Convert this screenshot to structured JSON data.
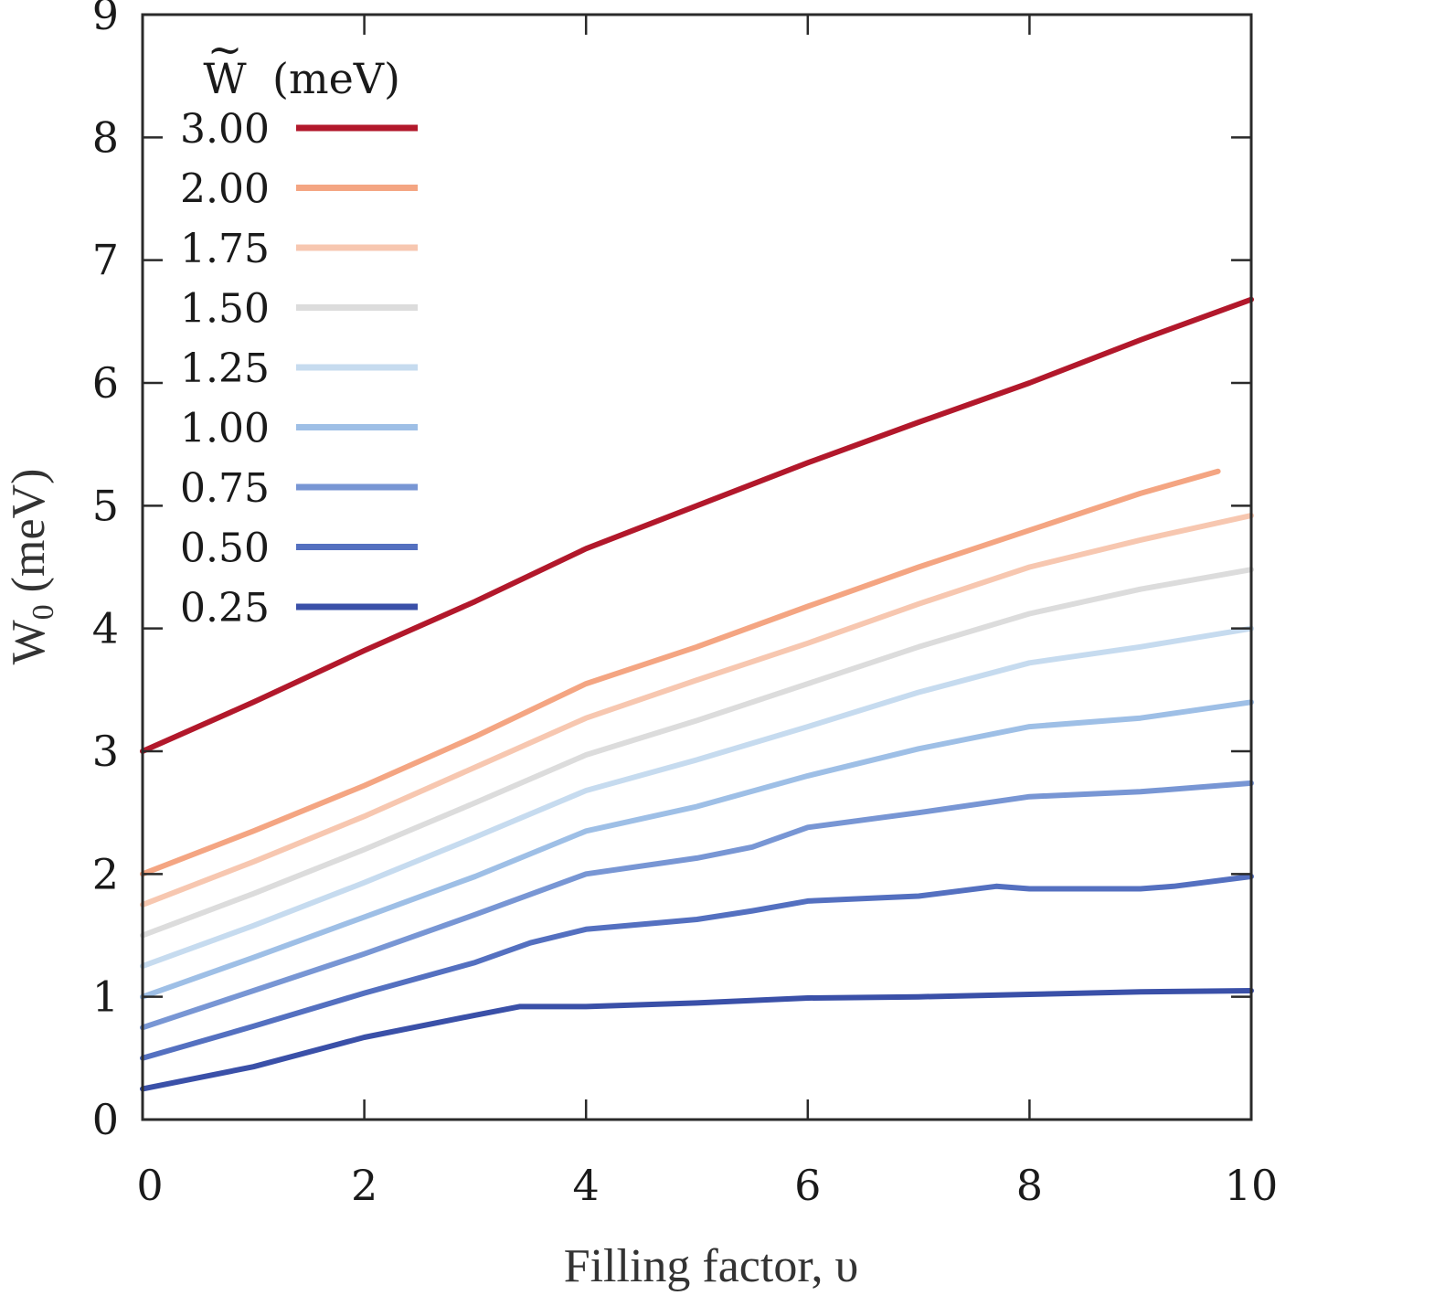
{
  "chart_data": {
    "type": "line",
    "title": "",
    "xlabel": "Filling factor, υ",
    "ylabel_main": "W",
    "ylabel_sub": "0",
    "ylabel_unit": " (meV)",
    "xlim": [
      0,
      10
    ],
    "ylim": [
      0,
      9
    ],
    "xticks": [
      0,
      2,
      4,
      6,
      8,
      10
    ],
    "yticks": [
      0,
      1,
      2,
      3,
      4,
      5,
      6,
      7,
      8,
      9
    ],
    "grid": false,
    "legend_title_symbol": "W",
    "legend_title_accent": "~",
    "legend_title_unit": "(meV)",
    "legend_position": "top-left",
    "series": [
      {
        "name": "3.00",
        "color": "#b2182b",
        "x": [
          0,
          1,
          2,
          3,
          4,
          5,
          6,
          7,
          8,
          9,
          10
        ],
        "y": [
          3.0,
          3.4,
          3.82,
          4.22,
          4.65,
          5.0,
          5.35,
          5.68,
          6.0,
          6.35,
          6.68
        ]
      },
      {
        "name": "2.00",
        "color": "#f4a582",
        "x": [
          0,
          1,
          2,
          3,
          4,
          5,
          6,
          7,
          8,
          9,
          9.7
        ],
        "y": [
          2.0,
          2.35,
          2.72,
          3.12,
          3.55,
          3.85,
          4.18,
          4.5,
          4.8,
          5.1,
          5.28
        ]
      },
      {
        "name": "1.75",
        "color": "#f7c7b0",
        "x": [
          0,
          1,
          2,
          3,
          4,
          5,
          6,
          7,
          8,
          9,
          10
        ],
        "y": [
          1.75,
          2.1,
          2.47,
          2.87,
          3.27,
          3.58,
          3.88,
          4.2,
          4.5,
          4.72,
          4.92
        ]
      },
      {
        "name": "1.50",
        "color": "#dcdcdc",
        "x": [
          0,
          1,
          2,
          3,
          4,
          5,
          6,
          7,
          8,
          9,
          10
        ],
        "y": [
          1.5,
          1.84,
          2.2,
          2.58,
          2.97,
          3.25,
          3.55,
          3.85,
          4.12,
          4.32,
          4.48
        ]
      },
      {
        "name": "1.25",
        "color": "#c6dbef",
        "x": [
          0,
          1,
          2,
          3,
          4,
          5,
          6,
          7,
          8,
          9,
          10
        ],
        "y": [
          1.25,
          1.58,
          1.93,
          2.3,
          2.68,
          2.93,
          3.2,
          3.48,
          3.72,
          3.85,
          4.0
        ]
      },
      {
        "name": "1.00",
        "color": "#9ebfe6",
        "x": [
          0,
          1,
          2,
          3,
          4,
          5,
          6,
          7,
          8,
          9,
          10
        ],
        "y": [
          1.0,
          1.32,
          1.65,
          1.98,
          2.35,
          2.55,
          2.8,
          3.02,
          3.2,
          3.27,
          3.4
        ]
      },
      {
        "name": "0.75",
        "color": "#7896d4",
        "x": [
          0,
          1,
          2,
          3,
          4,
          5,
          5.5,
          6,
          7,
          8,
          9,
          10
        ],
        "y": [
          0.75,
          1.05,
          1.35,
          1.67,
          2.0,
          2.13,
          2.22,
          2.38,
          2.5,
          2.63,
          2.67,
          2.74
        ]
      },
      {
        "name": "0.50",
        "color": "#5470c0",
        "x": [
          0,
          1,
          2,
          3,
          3.5,
          4,
          5,
          5.5,
          6,
          7,
          7.7,
          8,
          9,
          9.3,
          10
        ],
        "y": [
          0.5,
          0.76,
          1.03,
          1.28,
          1.44,
          1.55,
          1.63,
          1.7,
          1.78,
          1.82,
          1.9,
          1.88,
          1.88,
          1.9,
          1.98
        ]
      },
      {
        "name": "0.25",
        "color": "#3a50a8",
        "x": [
          0,
          1,
          2,
          3,
          3.4,
          4,
          5,
          6,
          7,
          8,
          9,
          10
        ],
        "y": [
          0.25,
          0.43,
          0.67,
          0.85,
          0.92,
          0.92,
          0.95,
          0.99,
          1.0,
          1.02,
          1.04,
          1.05
        ]
      }
    ]
  }
}
